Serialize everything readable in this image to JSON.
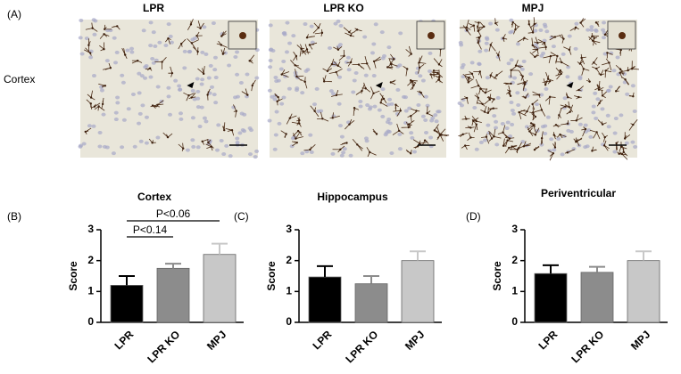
{
  "figure": {
    "panel_labels": [
      "(A)",
      "(B)",
      "(C)",
      "(D)"
    ],
    "image_titles": [
      "LPR",
      "LPR KO",
      "MPJ"
    ],
    "row_label": "Cortex"
  },
  "chart_data": [
    {
      "type": "bar",
      "title": "Cortex",
      "y_label": "Score",
      "categories": [
        "LPR",
        "LPR KO",
        "MPJ"
      ],
      "values": [
        1.2,
        1.75,
        2.2
      ],
      "errors": [
        0.3,
        0.15,
        0.35
      ],
      "colors": [
        "#000000",
        "#8c8c8c",
        "#c8c8c8"
      ],
      "ylim": [
        0,
        3
      ],
      "yticks": [
        0,
        1,
        2,
        3
      ],
      "annotations": [
        "P<0.14",
        "P<0.06"
      ]
    },
    {
      "type": "bar",
      "title": "Hippocampus",
      "y_label": "Score",
      "categories": [
        "LPR",
        "LPR KO",
        "MPJ"
      ],
      "values": [
        1.47,
        1.25,
        2.0
      ],
      "errors": [
        0.35,
        0.25,
        0.3
      ],
      "colors": [
        "#000000",
        "#8c8c8c",
        "#c8c8c8"
      ],
      "ylim": [
        0,
        3
      ],
      "yticks": [
        0,
        1,
        2,
        3
      ]
    },
    {
      "type": "bar",
      "title": "Periventricular",
      "y_label": "Score",
      "categories": [
        "LPR",
        "LPR KO",
        "MPJ"
      ],
      "values": [
        1.58,
        1.62,
        2.0
      ],
      "errors": [
        0.27,
        0.18,
        0.3
      ],
      "colors": [
        "#000000",
        "#8c8c8c",
        "#c8c8c8"
      ],
      "ylim": [
        0,
        3
      ],
      "yticks": [
        0,
        1,
        2,
        3
      ]
    }
  ]
}
